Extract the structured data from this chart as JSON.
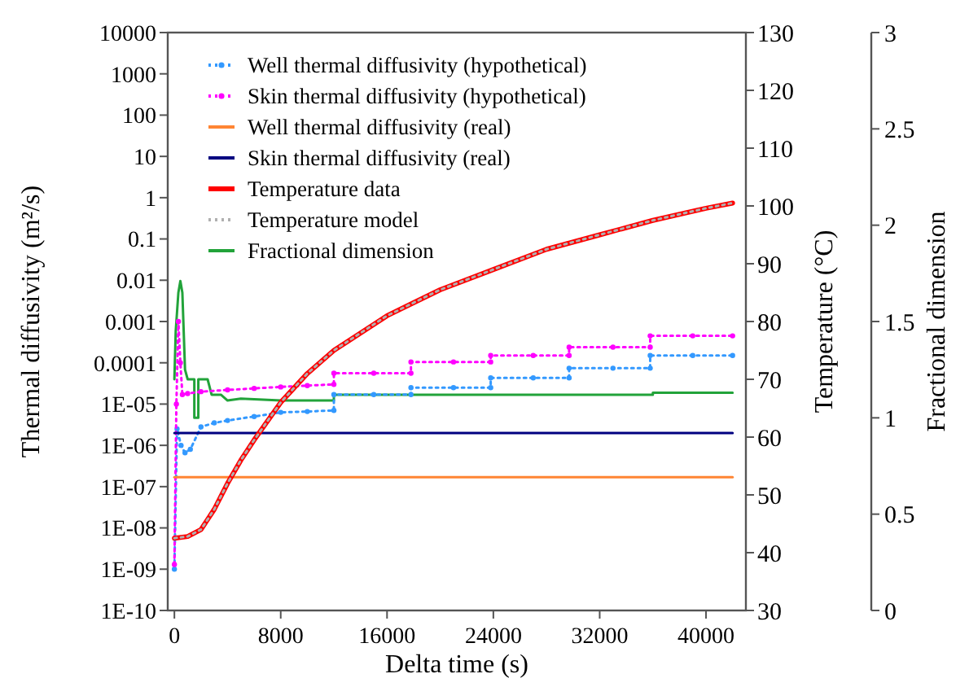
{
  "chart_data": {
    "type": "line",
    "xlabel": "Delta time (s)",
    "ylabel": "Thermal diffusivity (m²/s)",
    "y2label": "Temperature (°C)",
    "y3label": "Fractional dimension",
    "log": "y",
    "grid": false,
    "legend": "top left",
    "xlim": [
      -500,
      43000
    ],
    "xticks": [
      0,
      8000,
      16000,
      24000,
      32000,
      40000
    ],
    "ylim": [
      1e-10,
      10000
    ],
    "yticks": [
      10000,
      1000,
      100,
      10,
      1,
      0.1,
      0.01,
      0.001,
      {
        "value": 0.0001,
        "label": "0.0001"
      },
      {
        "value": 1e-05,
        "label": "1E-05"
      },
      {
        "value": 1e-06,
        "label": "1E-06"
      },
      {
        "value": 1e-07,
        "label": "1E-07"
      },
      {
        "value": 1e-08,
        "label": "1E-08"
      },
      {
        "value": 1e-09,
        "label": "1E-09"
      },
      {
        "value": 1e-10,
        "label": "1E-10"
      }
    ],
    "y2lim": [
      30,
      130
    ],
    "y2ticks": [
      30,
      40,
      50,
      60,
      70,
      80,
      90,
      100,
      110,
      120,
      130
    ],
    "y3lim": [
      0,
      3
    ],
    "y3ticks": [
      0,
      0.5,
      1,
      1.5,
      2,
      2.5,
      3
    ],
    "series": [
      {
        "name": "Well thermal diffusivity (hypothetical)",
        "color": "#3399ff",
        "line_style": "dotted",
        "marker": "circle",
        "x": [
          0,
          200,
          500,
          800,
          1200,
          2000,
          3000,
          4000,
          6000,
          8000,
          10000,
          12000,
          12000,
          15000,
          17800,
          17800,
          21000,
          23800,
          23800,
          27000,
          29700,
          29700,
          33000,
          35800,
          35800,
          39000,
          42000
        ],
        "values": [
          1e-09,
          2.5e-06,
          1e-06,
          6.6e-07,
          8e-07,
          2.8e-06,
          3.5e-06,
          4e-06,
          5e-06,
          6.3e-06,
          6.6e-06,
          7e-06,
          1.7e-05,
          1.7e-05,
          1.7e-05,
          2.5e-05,
          2.5e-05,
          2.5e-05,
          4.3e-05,
          4.3e-05,
          4.3e-05,
          7.4e-05,
          7.4e-05,
          7.4e-05,
          0.00015,
          0.00015,
          0.00015
        ]
      },
      {
        "name": "Skin thermal diffusivity (hypothetical)",
        "color": "#ff00ff",
        "line_style": "dotted",
        "marker": "circle",
        "x": [
          0,
          150,
          300,
          450,
          600,
          1000,
          2000,
          4000,
          6000,
          8000,
          10000,
          12000,
          12000,
          15000,
          17800,
          17800,
          21000,
          23800,
          23800,
          27000,
          29700,
          29700,
          33000,
          35800,
          35800,
          39000,
          42000
        ],
        "values": [
          1.3e-09,
          1e-05,
          0.001,
          0.0001,
          1.7e-05,
          1.8e-05,
          2e-05,
          2.2e-05,
          2.4e-05,
          2.6e-05,
          2.8e-05,
          3e-05,
          5.6e-05,
          5.6e-05,
          5.6e-05,
          0.000105,
          0.000105,
          0.000105,
          0.00015,
          0.00015,
          0.00015,
          0.00024,
          0.00024,
          0.00024,
          0.00045,
          0.00045,
          0.00045
        ]
      },
      {
        "name": "Well thermal diffusivity (real)",
        "color": "#ff8533",
        "line_style": "solid",
        "marker": "none",
        "x": [
          0,
          42000
        ],
        "values": [
          1.7e-07,
          1.7e-07
        ]
      },
      {
        "name": "Skin thermal diffusivity (real)",
        "color": "#000080",
        "line_style": "solid",
        "marker": "none",
        "x": [
          0,
          42000
        ],
        "values": [
          2e-06,
          2e-06
        ]
      },
      {
        "name": "Temperature data",
        "color": "#ff0000",
        "line_style": "solid",
        "marker": "none",
        "axis": "y2",
        "x": [
          0,
          1000,
          2000,
          3000,
          4000,
          5000,
          6000,
          8000,
          10000,
          12000,
          16000,
          20000,
          24000,
          28000,
          32000,
          36000,
          40000,
          42000
        ],
        "values": [
          42.5,
          42.8,
          44,
          47.5,
          52,
          56,
          59.5,
          66,
          71,
          75,
          81,
          85.5,
          89,
          92.5,
          95,
          97.5,
          99.6,
          100.5
        ]
      },
      {
        "name": "Temperature model",
        "color": "#b0b0b0",
        "line_style": "dotted",
        "marker": "none",
        "axis": "y2",
        "x": [
          0,
          1000,
          2000,
          3000,
          4000,
          5000,
          6000,
          8000,
          10000,
          12000,
          16000,
          20000,
          24000,
          28000,
          32000,
          36000,
          40000,
          42000
        ],
        "values": [
          42.5,
          42.8,
          44,
          47.5,
          52,
          56,
          59.5,
          66,
          71,
          75,
          81,
          85.5,
          89,
          92.5,
          95,
          97.5,
          99.6,
          100.5
        ]
      },
      {
        "name": "Fractional dimension",
        "color": "#22a33a",
        "line_style": "solid",
        "marker": "none",
        "axis": "y3",
        "x": [
          0,
          100,
          300,
          450,
          600,
          800,
          1000,
          1500,
          1500,
          1800,
          1800,
          2500,
          2800,
          3500,
          4000,
          5000,
          8000,
          12000,
          12000,
          36000,
          36000,
          42000
        ],
        "values": [
          1.2,
          1.45,
          1.65,
          1.71,
          1.65,
          1.25,
          1.2,
          1.2,
          1.0,
          1.0,
          1.2,
          1.2,
          1.12,
          1.12,
          1.09,
          1.1,
          1.09,
          1.09,
          1.12,
          1.12,
          1.13,
          1.13
        ]
      }
    ]
  }
}
